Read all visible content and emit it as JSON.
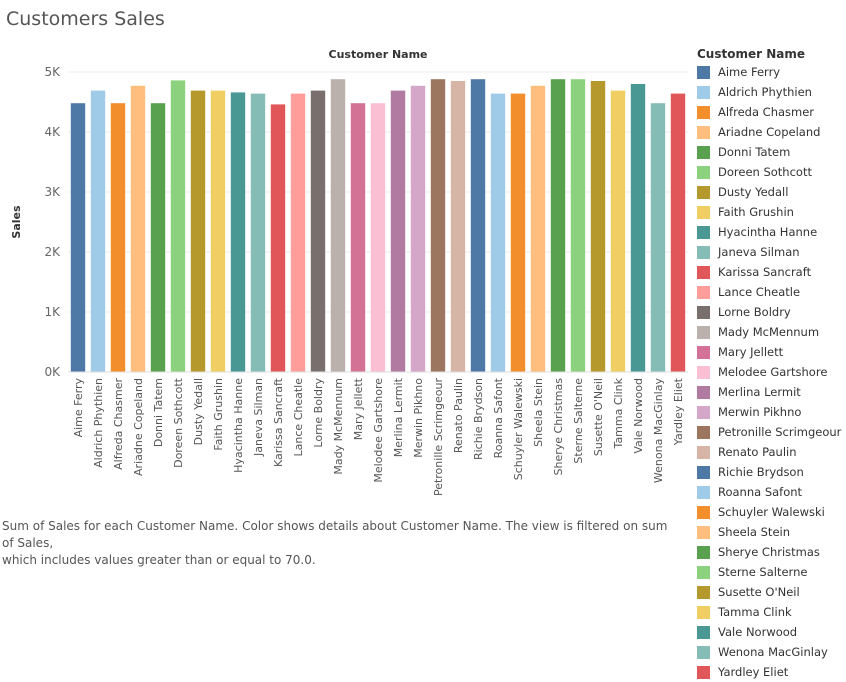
{
  "page": {
    "title": "Customers Sales",
    "caption_line1": "Sum of Sales for each Customer Name.  Color shows details about Customer Name. The view is filtered on sum of Sales,",
    "caption_line2": "which includes values greater than or equal to 70.0."
  },
  "legend": {
    "title": "Customer Name"
  },
  "chart_data": {
    "type": "bar",
    "title": "",
    "top_axis_label": "Customer Name",
    "xlabel": "",
    "ylabel": "Sales",
    "ylim": [
      0,
      5000
    ],
    "yticks": [
      0,
      1000,
      2000,
      3000,
      4000,
      5000
    ],
    "ytick_labels": [
      "0K",
      "1K",
      "2K",
      "3K",
      "4K",
      "5K"
    ],
    "grid": true,
    "legend_position": "right",
    "categories": [
      "Aime Ferry",
      "Aldrich Phythien",
      "Alfreda Chasmer",
      "Ariadne Copeland",
      "Donni Tatem",
      "Doreen Sothcott",
      "Dusty Yedall",
      "Faith Grushin",
      "Hyacintha Hanne",
      "Janeva Silman",
      "Karissa Sancraft",
      "Lance Cheatle",
      "Lorne Boldry",
      "Mady McMennum",
      "Mary Jellett",
      "Melodee Gartshore",
      "Merlina Lermit",
      "Merwin Pikhno",
      "Petronille Scrimgeour",
      "Renato Paulin",
      "Richie Brydson",
      "Roanna Safont",
      "Schuyler Walewski",
      "Sheela Stein",
      "Sherye Christmas",
      "Sterne Salterne",
      "Susette O'Neil",
      "Tamma Clink",
      "Vale Norwood",
      "Wenona MacGinlay",
      "Yardley Eliet"
    ],
    "values": [
      4480,
      4690,
      4480,
      4770,
      4480,
      4860,
      4690,
      4690,
      4660,
      4640,
      4460,
      4640,
      4690,
      4880,
      4480,
      4480,
      4690,
      4770,
      4880,
      4850,
      4880,
      4640,
      4640,
      4770,
      4880,
      4880,
      4850,
      4690,
      4800,
      4480,
      4640
    ],
    "colors": [
      "#4e79a7",
      "#a0cbe8",
      "#f28e2b",
      "#ffbe7d",
      "#59a14f",
      "#8cd17d",
      "#b6992d",
      "#f1ce63",
      "#499894",
      "#86bcb6",
      "#e15759",
      "#ff9d9a",
      "#79706e",
      "#bab0ac",
      "#d37295",
      "#fabfd2",
      "#b07aa1",
      "#d4a6c8",
      "#9d7660",
      "#d7b5a6",
      "#4e79a7",
      "#a0cbe8",
      "#f28e2b",
      "#ffbe7d",
      "#59a14f",
      "#8cd17d",
      "#b6992d",
      "#f1ce63",
      "#499894",
      "#86bcb6",
      "#e15759"
    ]
  }
}
